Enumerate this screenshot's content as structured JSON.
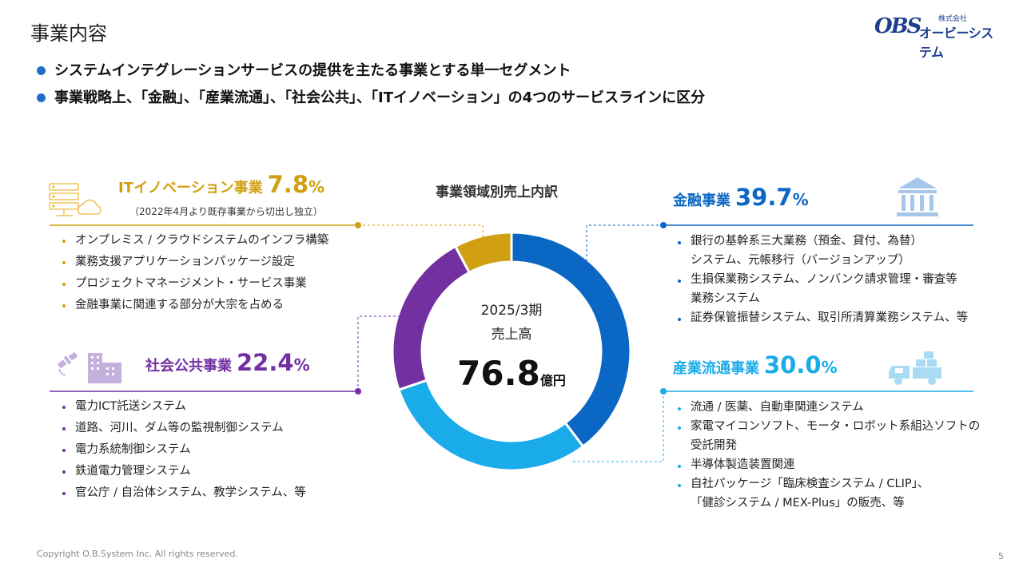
{
  "page_title": "事業内容",
  "logo": {
    "mark": "OBS",
    "small": "株式会社",
    "name": "オービーシステム"
  },
  "bullets": [
    "システムインテグレーションサービスの提供を主たる事業とする単一セグメント",
    "事業戦略上、「金融」、「産業流通」、「社会公共」、「ITイノベーション」の4つのサービスラインに区分"
  ],
  "chart_title": "事業領域別売上内訳",
  "center": {
    "period": "2025/3期",
    "label": "売上高",
    "value": "76.8",
    "unit": "億円"
  },
  "colors": {
    "finance": "#0b67c4",
    "industry": "#1aabe9",
    "public": "#7230a1",
    "it": "#d1a012",
    "accent": "#1e6fc8"
  },
  "icons": {
    "it": "server-cloud-icon",
    "public": "satellite-building-icon",
    "finance": "bank-icon",
    "industry": "delivery-truck-icon"
  },
  "segments": {
    "it": {
      "name": "ITイノベーション事業",
      "pct": "7.8",
      "pct_unit": "%",
      "note": "（2022年4月より既存事業から切出し独立）",
      "items": [
        "オンプレミス / クラウドシステムのインフラ構築",
        "業務支援アプリケーションパッケージ設定",
        "プロジェクトマネージメント・サービス事業",
        "金融事業に関連する部分が大宗を占める"
      ]
    },
    "public": {
      "name": "社会公共事業",
      "pct": "22.4",
      "pct_unit": "%",
      "items": [
        "電力ICT託送システム",
        "道路、河川、ダム等の監視制御システム",
        "電力系統制御システム",
        "鉄道電力管理システム",
        "官公庁 / 自治体システム、教学システム、等"
      ]
    },
    "finance": {
      "name": "金融事業",
      "pct": "39.7",
      "pct_unit": "%",
      "items": [
        [
          "銀行の基幹系三大業務（預金、貸付、為替）",
          "システム、元帳移行（バージョンアップ）"
        ],
        [
          "生損保業務システム、ノンバンク請求管理・審査等",
          "業務システム"
        ],
        [
          "証券保管振替システム、取引所清算業務システム、等"
        ]
      ]
    },
    "industry": {
      "name": "産業流通事業",
      "pct": "30.0",
      "pct_unit": "%",
      "items": [
        [
          "流通 / 医薬、自動車関連システム"
        ],
        [
          "家電マイコンソフト、モータ・ロボット系組込ソフトの",
          "受託開発"
        ],
        [
          "半導体製造装置関連"
        ],
        [
          "自社パッケージ「臨床検査システム / CLIP」、",
          "「健診システム / MEX-Plus」の販売、等"
        ]
      ]
    }
  },
  "chart_data": {
    "type": "pie",
    "donut": true,
    "title": "事業領域別売上内訳",
    "categories": [
      "金融事業",
      "産業流通事業",
      "社会公共事業",
      "ITイノベーション事業"
    ],
    "values": [
      39.7,
      30.0,
      22.4,
      7.8
    ],
    "unit": "%",
    "colors": [
      "#0b67c4",
      "#1aabe9",
      "#7230a1",
      "#d1a012"
    ],
    "start": "12 o'clock",
    "direction": "clockwise"
  },
  "footer": "Copyright O.B.System Inc. All rights reserved.",
  "page_number": "5"
}
